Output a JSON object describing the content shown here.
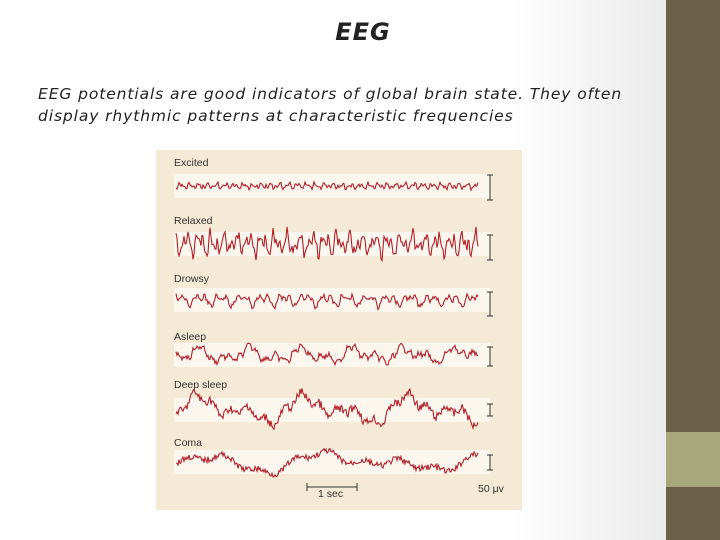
{
  "slide": {
    "title": "EEG",
    "body": [
      "EEG potentials are good indicators of global brain state.  They often",
      "display rhythmic patterns at characteristic frequencies"
    ],
    "figure": {
      "states": [
        "Excited",
        "Relaxed",
        "Drowsy",
        "Asleep",
        "Deep sleep",
        "Coma"
      ],
      "time_scale": "1 sec",
      "voltage_scale": "50 μv"
    }
  }
}
